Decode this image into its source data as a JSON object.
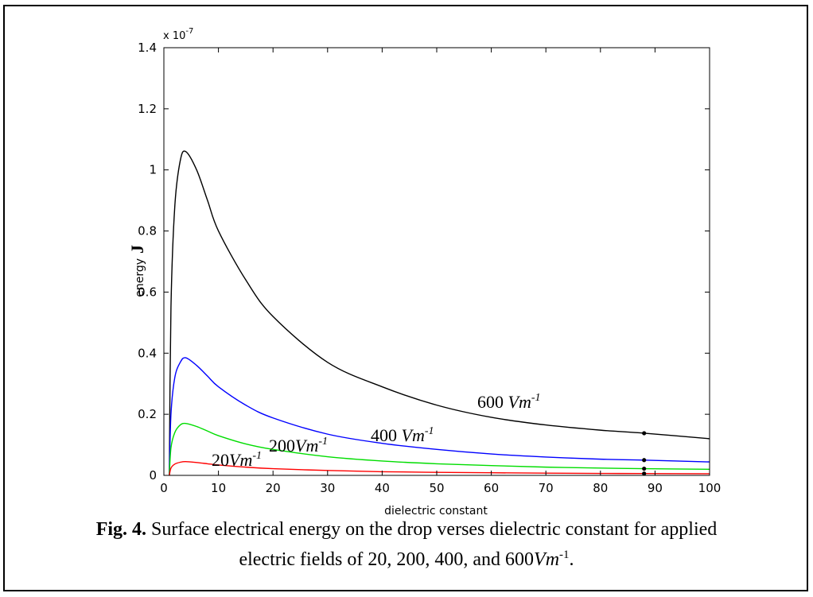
{
  "chart_data": {
    "type": "line",
    "xlabel": "dielectric constant",
    "ylabel": "energy",
    "ylabel_unit": "J",
    "y_exponent_label": "x 10",
    "y_exponent_sup": "-7",
    "xlim": [
      0,
      100
    ],
    "ylim": [
      0,
      1.4
    ],
    "x_ticks": [
      0,
      10,
      20,
      30,
      40,
      50,
      60,
      70,
      80,
      90,
      100
    ],
    "y_ticks": [
      0,
      0.2,
      0.4,
      0.6,
      0.8,
      1,
      1.2,
      1.4
    ],
    "y_tick_labels": [
      "0",
      "0.2",
      "0.4",
      "0.6",
      "0.8",
      "1",
      "1.2",
      "1.4"
    ],
    "grid": false,
    "marker_x": 88,
    "series": [
      {
        "name": "600",
        "label_text": "600 ",
        "label_unit": "Vm",
        "label_sup": "-1",
        "color": "#000000",
        "peak": 1.06,
        "x": [
          1,
          1.3,
          2,
          3,
          4,
          6,
          8,
          10,
          15,
          20,
          30,
          40,
          50,
          60,
          70,
          80,
          88,
          100
        ],
        "y": [
          0.0,
          0.55,
          0.88,
          1.03,
          1.06,
          1.0,
          0.9,
          0.8,
          0.64,
          0.52,
          0.37,
          0.29,
          0.23,
          0.19,
          0.165,
          0.148,
          0.138,
          0.12
        ]
      },
      {
        "name": "400",
        "label_text": "400 ",
        "label_unit": "Vm",
        "label_sup": "-1",
        "color": "#0000ff",
        "peak": 0.385,
        "x": [
          1,
          1.3,
          2,
          3,
          4,
          6,
          8,
          10,
          15,
          20,
          30,
          40,
          50,
          60,
          70,
          80,
          88,
          100
        ],
        "y": [
          0.0,
          0.2,
          0.32,
          0.37,
          0.385,
          0.36,
          0.325,
          0.29,
          0.23,
          0.188,
          0.135,
          0.105,
          0.085,
          0.07,
          0.06,
          0.053,
          0.05,
          0.044
        ]
      },
      {
        "name": "200",
        "label_text": "200",
        "label_unit": "Vm",
        "label_sup": "-1",
        "color": "#00dd00",
        "peak": 0.17,
        "x": [
          1,
          1.3,
          2,
          3,
          4,
          6,
          8,
          10,
          15,
          20,
          30,
          40,
          50,
          60,
          70,
          80,
          88,
          100
        ],
        "y": [
          0.0,
          0.09,
          0.14,
          0.165,
          0.17,
          0.16,
          0.145,
          0.13,
          0.103,
          0.085,
          0.061,
          0.047,
          0.038,
          0.032,
          0.027,
          0.024,
          0.022,
          0.02
        ]
      },
      {
        "name": "20",
        "label_text": "20",
        "label_unit": "Vm",
        "label_sup": "-1",
        "color": "#ff0000",
        "peak": 0.045,
        "x": [
          1,
          1.3,
          2,
          3,
          4,
          6,
          8,
          10,
          15,
          20,
          30,
          40,
          50,
          60,
          70,
          80,
          88,
          100
        ],
        "y": [
          0.0,
          0.024,
          0.037,
          0.043,
          0.045,
          0.042,
          0.038,
          0.034,
          0.027,
          0.022,
          0.016,
          0.012,
          0.01,
          0.0085,
          0.0072,
          0.0064,
          0.006,
          0.0053
        ]
      }
    ]
  },
  "caption": {
    "fig_label": "Fig. 4.",
    "text_line1": " Surface electrical energy on the drop verses dielectric constant for applied",
    "text_line2": "electric fields of 20, 200, 400, and 600",
    "unit": "Vm",
    "sup": "-1",
    "end": "."
  }
}
